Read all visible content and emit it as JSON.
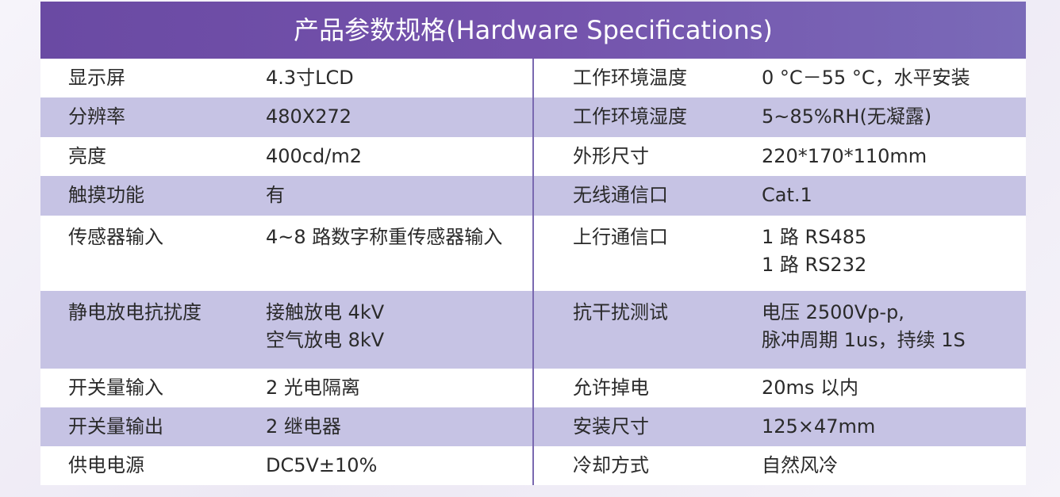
{
  "header": {
    "title": "产品参数规格(Hardware Specifications)"
  },
  "table": {
    "rows": [
      [
        "显示屏",
        "4.3寸LCD",
        "工作环境温度",
        "0 °C－55 °C，水平安装"
      ],
      [
        "分辨率",
        "480X272",
        "工作环境湿度",
        "5~85%RH(无凝露)"
      ],
      [
        "亮度",
        "400cd/m2",
        "外形尺寸",
        "220*170*110mm"
      ],
      [
        "触摸功能",
        "有",
        "无线通信口",
        "Cat.1"
      ],
      [
        "传感器输入",
        "4~8 路数字称重传感器输入",
        "上行通信口",
        [
          "1 路 RS485",
          "1 路 RS232"
        ]
      ],
      [
        "静电放电抗扰度",
        [
          "接触放电 4kV",
          "空气放电 8kV"
        ],
        "抗干扰测试",
        [
          "电压 2500Vp-p,",
          "脉冲周期 1us，持续 1S"
        ]
      ],
      [
        "开关量输入",
        "2 光电隔离",
        "允许掉电",
        "20ms 以内"
      ],
      [
        "开关量输出",
        "2 继电器",
        "安装尺寸",
        "125×47mm"
      ],
      [
        "供电电源",
        "DC5V±10%",
        "冷却方式",
        "自然风冷"
      ]
    ]
  }
}
